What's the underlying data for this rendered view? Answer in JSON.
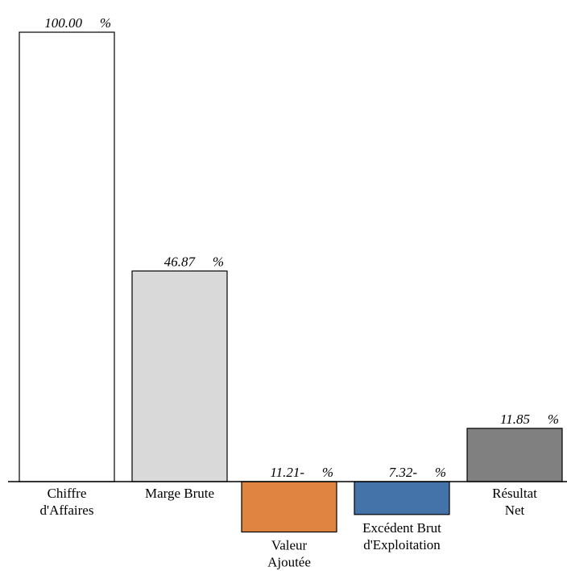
{
  "chart_data": {
    "type": "bar",
    "categories": [
      "Chiffre d'Affaires",
      "Marge Brute",
      "Valeur Ajoutée",
      "Excédent Brut d'Exploitation",
      "Résultat Net"
    ],
    "category_label_lines": [
      [
        "Chiffre",
        "d'Affaires"
      ],
      [
        "Marge Brute"
      ],
      [
        "Valeur",
        "Ajoutée"
      ],
      [
        "Excédent Brut",
        "d'Exploitation"
      ],
      [
        "Résultat",
        "Net"
      ]
    ],
    "values": [
      100.0,
      46.87,
      -11.21,
      -7.32,
      11.85
    ],
    "value_labels": [
      "100.00",
      "46.87",
      "11.21-",
      "7.32-",
      "11.85"
    ],
    "unit_symbol": "%",
    "colors": [
      "#ffffff",
      "#d9d9d9",
      "#df8541",
      "#4473aa",
      "#808080"
    ],
    "bar_stroke": "#000000",
    "title": "",
    "xlabel": "",
    "ylabel": "",
    "ylim": [
      -11.21,
      100.0
    ],
    "grid": false,
    "legend": "none"
  }
}
